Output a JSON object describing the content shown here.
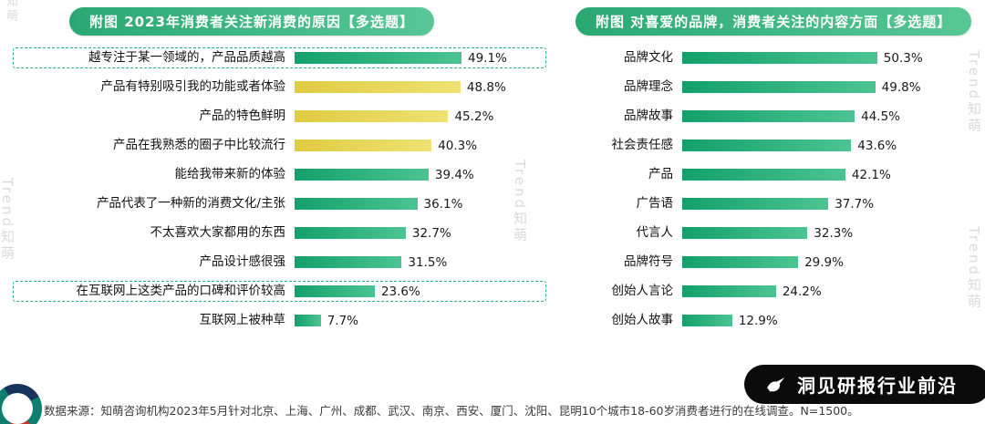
{
  "watermark": {
    "text": "Trend知萌",
    "short": "知萌",
    "color": "#bdbdbd"
  },
  "colors": {
    "header_gradient_start": "#2aa872",
    "header_gradient_end": "#58c795",
    "green_bar_start": "#13a06b",
    "green_bar_end": "#4cc492",
    "yellow_bar_start": "#e0cb41",
    "yellow_bar_end": "#efe273",
    "highlight_dash": "#2fae7d",
    "badge_bg": "#0b0b0b",
    "badge_text": "#ffffff"
  },
  "chart_data": [
    {
      "type": "bar",
      "orientation": "horizontal",
      "title": "附图 2023年消费者关注新消费的原因【多选题】",
      "unit": "%",
      "xlim": [
        0,
        55
      ],
      "items": [
        {
          "label": "越专注于某一领域的，产品品质越高",
          "value": 49.1,
          "value_label": "49.1%",
          "color": "green",
          "highlight": true
        },
        {
          "label": "产品有特别吸引我的功能或者体验",
          "value": 48.8,
          "value_label": "48.8%",
          "color": "yellow",
          "highlight": false
        },
        {
          "label": "产品的特色鲜明",
          "value": 45.2,
          "value_label": "45.2%",
          "color": "yellow",
          "highlight": false
        },
        {
          "label": "产品在我熟悉的圈子中比较流行",
          "value": 40.3,
          "value_label": "40.3%",
          "color": "yellow",
          "highlight": false
        },
        {
          "label": "能给我带来新的体验",
          "value": 39.4,
          "value_label": "39.4%",
          "color": "green",
          "highlight": false
        },
        {
          "label": "产品代表了一种新的消费文化/主张",
          "value": 36.1,
          "value_label": "36.1%",
          "color": "green",
          "highlight": false
        },
        {
          "label": "不太喜欢大家都用的东西",
          "value": 32.7,
          "value_label": "32.7%",
          "color": "green",
          "highlight": false
        },
        {
          "label": "产品设计感很强",
          "value": 31.5,
          "value_label": "31.5%",
          "color": "green",
          "highlight": false
        },
        {
          "label": "在互联网上这类产品的口碑和评价较高",
          "value": 23.6,
          "value_label": "23.6%",
          "color": "green",
          "highlight": true
        },
        {
          "label": "互联网上被种草",
          "value": 7.7,
          "value_label": "7.7%",
          "color": "green",
          "highlight": false
        }
      ]
    },
    {
      "type": "bar",
      "orientation": "horizontal",
      "title": "附图 对喜爱的品牌，消费者关注的内容方面【多选题】",
      "unit": "%",
      "xlim": [
        0,
        60
      ],
      "items": [
        {
          "label": "品牌文化",
          "value": 50.3,
          "value_label": "50.3%",
          "color": "green",
          "highlight": false
        },
        {
          "label": "品牌理念",
          "value": 49.8,
          "value_label": "49.8%",
          "color": "green",
          "highlight": false
        },
        {
          "label": "品牌故事",
          "value": 44.5,
          "value_label": "44.5%",
          "color": "green",
          "highlight": false
        },
        {
          "label": "社会责任感",
          "value": 43.6,
          "value_label": "43.6%",
          "color": "green",
          "highlight": false
        },
        {
          "label": "产品",
          "value": 42.1,
          "value_label": "42.1%",
          "color": "green",
          "highlight": false
        },
        {
          "label": "广告语",
          "value": 37.7,
          "value_label": "37.7%",
          "color": "green",
          "highlight": false
        },
        {
          "label": "代言人",
          "value": 32.3,
          "value_label": "32.3%",
          "color": "green",
          "highlight": false
        },
        {
          "label": "品牌符号",
          "value": 29.9,
          "value_label": "29.9%",
          "color": "green",
          "highlight": false
        },
        {
          "label": "创始人言论",
          "value": 24.2,
          "value_label": "24.2%",
          "color": "green",
          "highlight": false
        },
        {
          "label": "创始人故事",
          "value": 12.9,
          "value_label": "12.9%",
          "color": "green",
          "highlight": false
        }
      ]
    }
  ],
  "footer": {
    "source": "数据来源：知萌咨询机构2023年5月针对北京、上海、广州、成都、武汉、南京、西安、厦门、沈阳、昆明10个城市18-60岁消费者进行的在线调查。N=1500。"
  },
  "badge": {
    "text": "洞见研报行业前沿",
    "icon": "bird-logo"
  }
}
